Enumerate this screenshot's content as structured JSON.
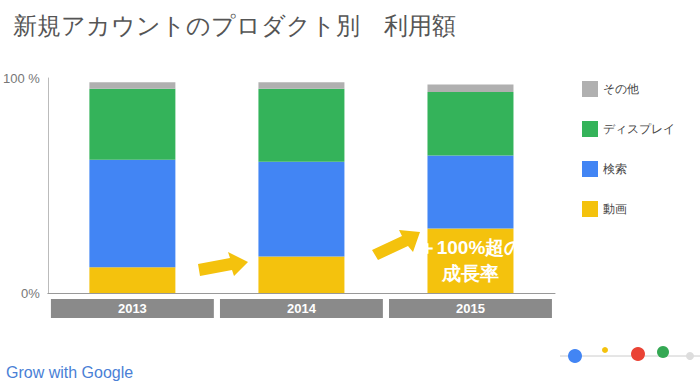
{
  "chart_data": {
    "type": "bar",
    "title": "新規アカウントのプロダクト別　利用額",
    "categories": [
      "2013",
      "2014",
      "2015"
    ],
    "series": [
      {
        "name": "動画",
        "color": "#f4c20d",
        "values": [
          12,
          17,
          30
        ]
      },
      {
        "name": "検索",
        "color": "#4285f4",
        "values": [
          50,
          44,
          34
        ]
      },
      {
        "name": "ディスプレイ",
        "color": "#34b35a",
        "values": [
          33,
          34,
          29.5
        ]
      },
      {
        "name": "その他",
        "color": "#b0b0b0",
        "values": [
          3,
          3,
          3.5
        ]
      }
    ],
    "stacked": true,
    "ylim": [
      0,
      100
    ],
    "yticks": [
      {
        "value": 0,
        "label": "0%"
      },
      {
        "value": 100,
        "label": "100 %"
      }
    ],
    "grid": false,
    "legend": "right",
    "annotation": {
      "category": "2015",
      "series": "動画",
      "text": [
        "＋100%超の",
        "成長率"
      ]
    },
    "footer": "Grow with Google"
  }
}
